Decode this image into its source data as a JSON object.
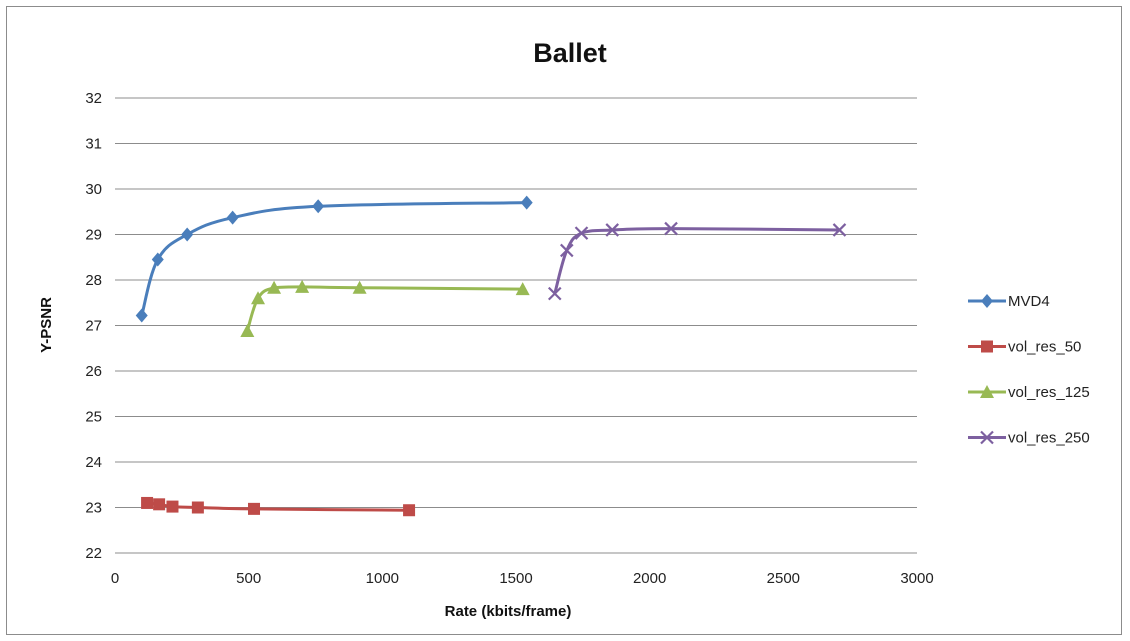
{
  "chart_data": {
    "type": "line",
    "title": "Ballet",
    "xlabel": "Rate (kbits/frame)",
    "ylabel": "Y-PSNR",
    "xlim": [
      0,
      3000
    ],
    "ylim": [
      22,
      32
    ],
    "xticks": [
      0,
      500,
      1000,
      1500,
      2000,
      2500,
      3000
    ],
    "yticks": [
      22,
      23,
      24,
      25,
      26,
      27,
      28,
      29,
      30,
      31,
      32
    ],
    "grid": "horizontal",
    "legend_position": "right",
    "series": [
      {
        "name": "MVD4",
        "color": "#4a7ebb",
        "marker": "diamond",
        "x": [
          100,
          160,
          270,
          440,
          760,
          1540
        ],
        "y": [
          27.22,
          28.45,
          29.0,
          29.37,
          29.62,
          29.7
        ]
      },
      {
        "name": "vol_res_50",
        "color": "#be4b48",
        "marker": "square",
        "x": [
          120,
          165,
          215,
          310,
          520,
          1100
        ],
        "y": [
          23.1,
          23.07,
          23.02,
          23.0,
          22.97,
          22.94
        ]
      },
      {
        "name": "vol_res_125",
        "color": "#98b954",
        "marker": "triangle",
        "x": [
          495,
          535,
          595,
          700,
          915,
          1525
        ],
        "y": [
          26.88,
          27.6,
          27.83,
          27.85,
          27.83,
          27.8
        ]
      },
      {
        "name": "vol_res_250",
        "color": "#7d60a0",
        "marker": "x",
        "x": [
          1645,
          1690,
          1745,
          1860,
          2080,
          2710
        ],
        "y": [
          27.7,
          28.65,
          29.03,
          29.1,
          29.13,
          29.1
        ]
      }
    ]
  }
}
